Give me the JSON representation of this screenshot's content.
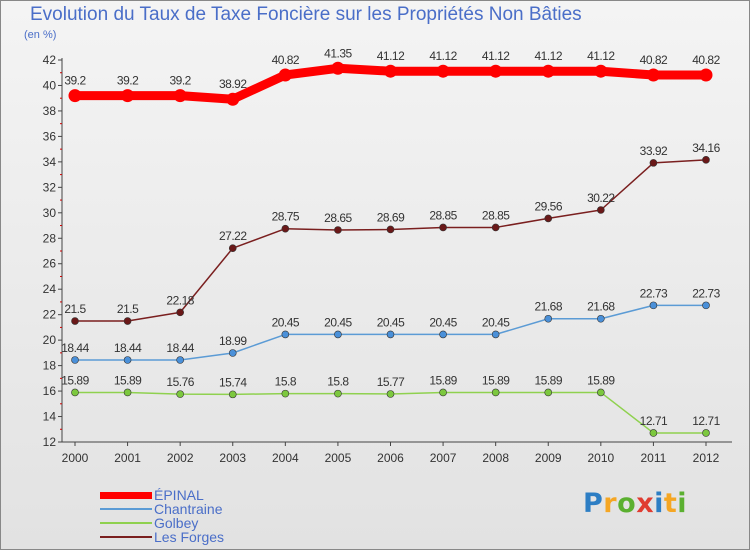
{
  "title": "Evolution du Taux de Taxe Foncière sur les Propriétés Non Bâties",
  "unit_label": "(en %)",
  "chart_data": {
    "type": "line",
    "title": "Evolution du Taux de Taxe Foncière sur les Propriétés Non Bâties",
    "ylabel": "(en %)",
    "xlabel": "",
    "categories": [
      "2000",
      "2001",
      "2002",
      "2003",
      "2004",
      "2005",
      "2006",
      "2007",
      "2008",
      "2009",
      "2010",
      "2011",
      "2012"
    ],
    "ylim": [
      12,
      42
    ],
    "yticks": [
      12,
      14,
      16,
      18,
      20,
      22,
      24,
      26,
      28,
      30,
      32,
      34,
      36,
      38,
      40,
      42
    ],
    "grid": false,
    "legend_position": "bottom-left",
    "series": [
      {
        "name": "Les Forges",
        "color": "#7a1f1f",
        "marker_fill": "#6a1818",
        "values": [
          21.5,
          21.5,
          22.18,
          27.22,
          28.75,
          28.65,
          28.69,
          28.85,
          28.85,
          29.56,
          30.22,
          33.92,
          34.16
        ],
        "labels": [
          "21.5",
          "21.5",
          "22.18",
          "27.22",
          "28.75",
          "28.65",
          "28.69",
          "28.85",
          "28.85",
          "29.56",
          "30.22",
          "33.92",
          "34.16"
        ]
      },
      {
        "name": "Chantraine",
        "color": "#5b9bd5",
        "marker_fill": "#4a90d9",
        "values": [
          18.44,
          18.44,
          18.44,
          18.99,
          20.45,
          20.45,
          20.45,
          20.45,
          20.45,
          21.68,
          21.68,
          22.73,
          22.73
        ],
        "labels": [
          "18.44",
          "18.44",
          "18.44",
          "18.99",
          "20.45",
          "20.45",
          "20.45",
          "20.45",
          "20.45",
          "21.68",
          "21.68",
          "22.73",
          "22.73"
        ]
      },
      {
        "name": "Golbey",
        "color": "#8fd14f",
        "marker_fill": "#7cc83e",
        "values": [
          15.89,
          15.89,
          15.76,
          15.74,
          15.8,
          15.8,
          15.77,
          15.89,
          15.89,
          15.89,
          15.89,
          12.71,
          12.71
        ],
        "labels": [
          "15.89",
          "15.89",
          "15.76",
          "15.74",
          "15.8",
          "15.8",
          "15.77",
          "15.89",
          "15.89",
          "15.89",
          "15.89",
          "12.71",
          "12.71"
        ]
      },
      {
        "name": "ÉPINAL",
        "color": "#ff0000",
        "marker_fill": "#ff0000",
        "bold": true,
        "values": [
          39.2,
          39.2,
          39.2,
          38.92,
          40.82,
          41.35,
          41.12,
          41.12,
          41.12,
          41.12,
          41.12,
          40.82,
          40.82
        ],
        "labels": [
          "39.2",
          "39.2",
          "39.2",
          "38.92",
          "40.82",
          "41.35",
          "41.12",
          "41.12",
          "41.12",
          "41.12",
          "41.12",
          "40.82",
          "40.82"
        ]
      }
    ]
  },
  "legend": [
    {
      "label": "ÉPINAL",
      "color": "#ff0000"
    },
    {
      "label": "Chantraine",
      "color": "#5b9bd5"
    },
    {
      "label": "Golbey",
      "color": "#8fd14f"
    },
    {
      "label": "Les Forges",
      "color": "#7a1f1f"
    }
  ],
  "logo": {
    "letters": [
      "P",
      "r",
      "o",
      "x",
      "i",
      "t",
      "i"
    ],
    "colors": [
      "#2d7ec4",
      "#f5a623",
      "#5bb030",
      "#e03c31",
      "#2d7ec4",
      "#f5a623",
      "#5bb030"
    ]
  }
}
